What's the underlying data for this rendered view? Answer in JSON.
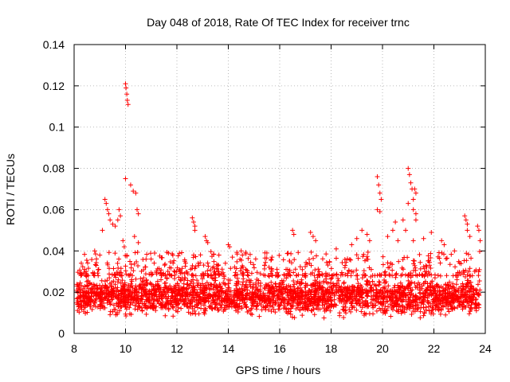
{
  "chart_data": {
    "type": "scatter",
    "title": "Day 048 of 2018, Rate Of TEC Index for receiver trnc",
    "xlabel": "GPS time / hours",
    "ylabel": "ROTI / TECUs",
    "xlim": [
      8,
      24
    ],
    "ylim": [
      0,
      0.14
    ],
    "xticks": [
      8,
      10,
      12,
      14,
      16,
      18,
      20,
      22,
      24
    ],
    "yticks": [
      0,
      0.02,
      0.04,
      0.06,
      0.08,
      0.1,
      0.12,
      0.14
    ],
    "xtick_labels": [
      "8",
      "10",
      "12",
      "14",
      "16",
      "18",
      "20",
      "22",
      "24"
    ],
    "ytick_labels": [
      "0",
      "0.02",
      "0.04",
      "0.06",
      "0.08",
      "0.1",
      "0.12",
      "0.14"
    ],
    "grid": true,
    "marker": "+",
    "color": "#ff0000",
    "series": [
      {
        "name": "ROTI",
        "dense_band": {
          "x_range": [
            8.1,
            23.8
          ],
          "y_range": [
            0.006,
            0.03
          ],
          "typical": 0.018
        },
        "points": [
          [
            9.2,
            0.065
          ],
          [
            9.25,
            0.063
          ],
          [
            9.3,
            0.06
          ],
          [
            9.35,
            0.058
          ],
          [
            9.4,
            0.055
          ],
          [
            9.5,
            0.053
          ],
          [
            9.6,
            0.052
          ],
          [
            9.7,
            0.055
          ],
          [
            9.75,
            0.06
          ],
          [
            9.8,
            0.057
          ],
          [
            9.9,
            0.045
          ],
          [
            9.95,
            0.042
          ],
          [
            10.0,
            0.121
          ],
          [
            10.02,
            0.119
          ],
          [
            10.05,
            0.116
          ],
          [
            10.07,
            0.113
          ],
          [
            10.1,
            0.111
          ],
          [
            10.0,
            0.075
          ],
          [
            10.2,
            0.072
          ],
          [
            10.3,
            0.069
          ],
          [
            10.4,
            0.068
          ],
          [
            10.45,
            0.06
          ],
          [
            10.5,
            0.058
          ],
          [
            10.35,
            0.047
          ],
          [
            10.5,
            0.044
          ],
          [
            8.8,
            0.04
          ],
          [
            9.0,
            0.038
          ],
          [
            9.1,
            0.05
          ],
          [
            10.8,
            0.036
          ],
          [
            12.6,
            0.056
          ],
          [
            12.65,
            0.054
          ],
          [
            12.7,
            0.052
          ],
          [
            12.7,
            0.05
          ],
          [
            13.1,
            0.047
          ],
          [
            13.15,
            0.045
          ],
          [
            13.2,
            0.044
          ],
          [
            14.0,
            0.043
          ],
          [
            14.05,
            0.042
          ],
          [
            14.5,
            0.04
          ],
          [
            14.55,
            0.038
          ],
          [
            15.5,
            0.039
          ],
          [
            15.7,
            0.037
          ],
          [
            16.5,
            0.05
          ],
          [
            16.55,
            0.048
          ],
          [
            17.2,
            0.049
          ],
          [
            17.3,
            0.047
          ],
          [
            17.4,
            0.045
          ],
          [
            18.2,
            0.041
          ],
          [
            18.8,
            0.043
          ],
          [
            19.0,
            0.046
          ],
          [
            19.2,
            0.05
          ],
          [
            19.4,
            0.048
          ],
          [
            19.5,
            0.045
          ],
          [
            19.8,
            0.076
          ],
          [
            19.85,
            0.072
          ],
          [
            19.9,
            0.068
          ],
          [
            19.95,
            0.065
          ],
          [
            19.8,
            0.06
          ],
          [
            19.9,
            0.059
          ],
          [
            20.2,
            0.047
          ],
          [
            20.4,
            0.05
          ],
          [
            20.5,
            0.054
          ],
          [
            20.6,
            0.045
          ],
          [
            20.8,
            0.055
          ],
          [
            20.9,
            0.05
          ],
          [
            21.0,
            0.08
          ],
          [
            21.05,
            0.077
          ],
          [
            21.1,
            0.073
          ],
          [
            21.15,
            0.07
          ],
          [
            21.0,
            0.063
          ],
          [
            21.2,
            0.065
          ],
          [
            21.25,
            0.07
          ],
          [
            21.3,
            0.068
          ],
          [
            21.2,
            0.06
          ],
          [
            21.3,
            0.058
          ],
          [
            21.3,
            0.055
          ],
          [
            21.2,
            0.045
          ],
          [
            21.6,
            0.046
          ],
          [
            21.9,
            0.049
          ],
          [
            22.3,
            0.045
          ],
          [
            22.4,
            0.043
          ],
          [
            23.2,
            0.057
          ],
          [
            23.25,
            0.055
          ],
          [
            23.3,
            0.053
          ],
          [
            23.3,
            0.05
          ],
          [
            23.4,
            0.047
          ],
          [
            23.7,
            0.052
          ],
          [
            23.75,
            0.05
          ],
          [
            23.8,
            0.045
          ],
          [
            22.8,
            0.04
          ]
        ]
      }
    ]
  }
}
